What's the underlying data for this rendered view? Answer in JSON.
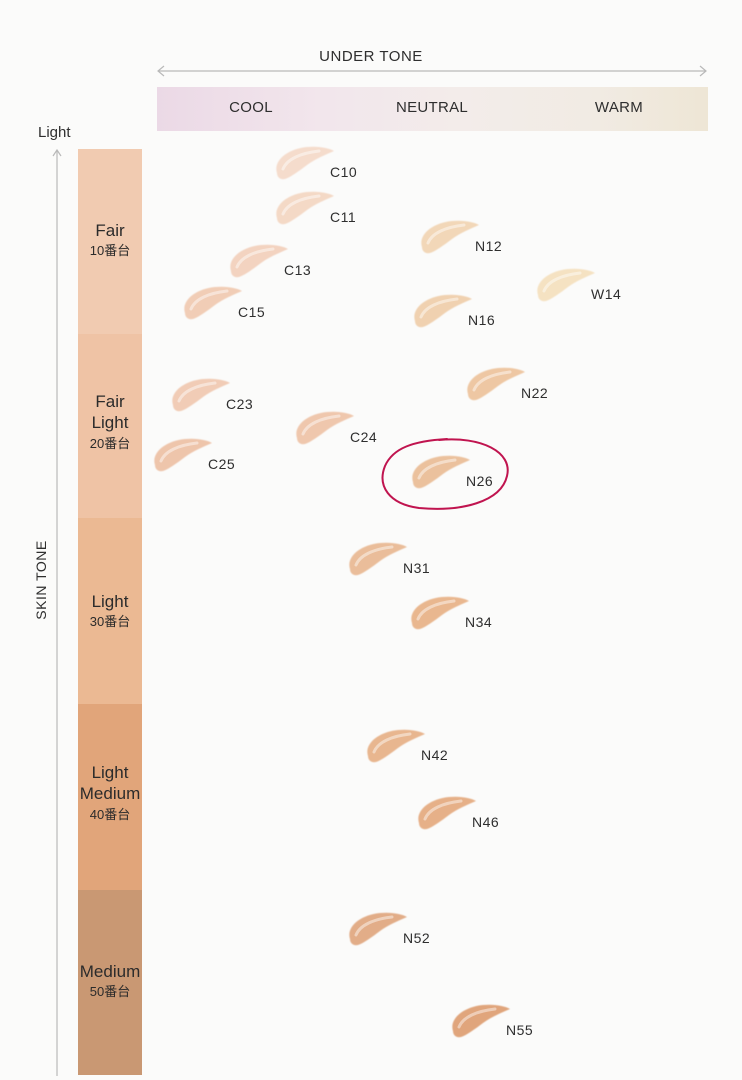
{
  "header": {
    "title": "UNDER TONE",
    "undertones": [
      "COOL",
      "NEUTRAL",
      "WARM"
    ]
  },
  "axis": {
    "top_label": "Light",
    "side_label": "SKIN TONE"
  },
  "tones": [
    {
      "name": [
        "Fair"
      ],
      "sub": "10番台",
      "color": "#f1cbb1"
    },
    {
      "name": [
        "Fair",
        "Light"
      ],
      "sub": "20番台",
      "color": "#efc3a5"
    },
    {
      "name": [
        "Light"
      ],
      "sub": "30番台",
      "color": "#ebb993"
    },
    {
      "name": [
        "Light",
        "Medium"
      ],
      "sub": "40番台",
      "color": "#e1a57a"
    },
    {
      "name": [
        "Medium"
      ],
      "sub": "50番台",
      "color": "#c99873"
    }
  ],
  "highlight": {
    "shade": "N26",
    "color": "#c0144f"
  },
  "chart_data": {
    "type": "scatter",
    "x_axis": {
      "label": "UNDER TONE",
      "categories": [
        "COOL",
        "NEUTRAL",
        "WARM"
      ]
    },
    "y_axis": {
      "label": "SKIN TONE",
      "top_label": "Light",
      "categories": [
        "Fair 10番台",
        "Fair Light 20番台",
        "Light 30番台",
        "Light Medium 40番台",
        "Medium 50番台"
      ]
    },
    "points": [
      {
        "label": "C10",
        "tone": "Fair",
        "undertone": "COOL",
        "color": "#f5dccc"
      },
      {
        "label": "C11",
        "tone": "Fair",
        "undertone": "COOL",
        "color": "#f4d9c6"
      },
      {
        "label": "C13",
        "tone": "Fair",
        "undertone": "COOL",
        "color": "#f3d3c0"
      },
      {
        "label": "C15",
        "tone": "Fair",
        "undertone": "COOL",
        "color": "#f1cdb6"
      },
      {
        "label": "N12",
        "tone": "Fair",
        "undertone": "NEUTRAL",
        "color": "#f2d7b8"
      },
      {
        "label": "N16",
        "tone": "Fair",
        "undertone": "NEUTRAL",
        "color": "#f0d1b0"
      },
      {
        "label": "W14",
        "tone": "Fair",
        "undertone": "WARM",
        "color": "#f5e2c2"
      },
      {
        "label": "C23",
        "tone": "Fair Light",
        "undertone": "COOL",
        "color": "#f1ccb6"
      },
      {
        "label": "C24",
        "tone": "Fair Light",
        "undertone": "COOL",
        "color": "#efc7ad"
      },
      {
        "label": "C25",
        "tone": "Fair Light",
        "undertone": "COOL",
        "color": "#eec5ab"
      },
      {
        "label": "N22",
        "tone": "Fair Light",
        "undertone": "NEUTRAL",
        "color": "#eec7a3"
      },
      {
        "label": "N26",
        "tone": "Fair Light",
        "undertone": "NEUTRAL",
        "color": "#ebc19d"
      },
      {
        "label": "N31",
        "tone": "Light",
        "undertone": "NEUTRAL",
        "color": "#eabd9a"
      },
      {
        "label": "N34",
        "tone": "Light",
        "undertone": "NEUTRAL",
        "color": "#e9b78f"
      },
      {
        "label": "N42",
        "tone": "Light Medium",
        "undertone": "NEUTRAL",
        "color": "#e8b68f"
      },
      {
        "label": "N46",
        "tone": "Light Medium",
        "undertone": "NEUTRAL",
        "color": "#e6b088"
      },
      {
        "label": "N52",
        "tone": "Medium",
        "undertone": "NEUTRAL",
        "color": "#e2ad88"
      },
      {
        "label": "N55",
        "tone": "Medium",
        "undertone": "NEUTRAL",
        "color": "#e0a57c"
      }
    ]
  }
}
